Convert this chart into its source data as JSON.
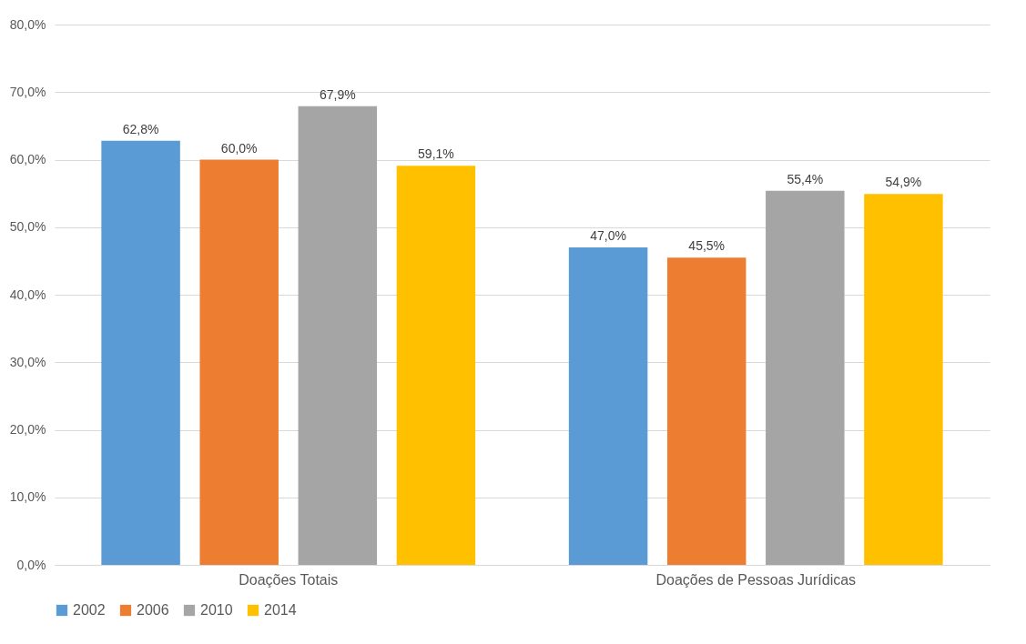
{
  "chart_data": {
    "type": "bar",
    "categories": [
      "Doações Totais",
      "Doações de Pessoas Jurídicas"
    ],
    "series": [
      {
        "name": "2002",
        "color": "#5b9bd5",
        "values": [
          62.8,
          47.0
        ],
        "value_labels": [
          "62,8%",
          "47,0%"
        ]
      },
      {
        "name": "2006",
        "color": "#ed7d31",
        "values": [
          60.0,
          45.5
        ],
        "value_labels": [
          "60,0%",
          "45,5%"
        ]
      },
      {
        "name": "2010",
        "color": "#a5a5a5",
        "values": [
          67.9,
          55.4
        ],
        "value_labels": [
          "67,9%",
          "55,4%"
        ]
      },
      {
        "name": "2014",
        "color": "#ffc000",
        "values": [
          59.1,
          54.9
        ],
        "value_labels": [
          "59,1%",
          "54,9%"
        ]
      }
    ],
    "ylim": [
      0,
      80
    ],
    "yticks": [
      {
        "value": 0,
        "label": "0,0%"
      },
      {
        "value": 10,
        "label": "10,0%"
      },
      {
        "value": 20,
        "label": "20,0%"
      },
      {
        "value": 30,
        "label": "30,0%"
      },
      {
        "value": 40,
        "label": "40,0%"
      },
      {
        "value": 50,
        "label": "50,0%"
      },
      {
        "value": 60,
        "label": "60,0%"
      },
      {
        "value": 70,
        "label": "70,0%"
      },
      {
        "value": 80,
        "label": "80,0%"
      }
    ],
    "grid": "y",
    "legend": "bottom"
  }
}
